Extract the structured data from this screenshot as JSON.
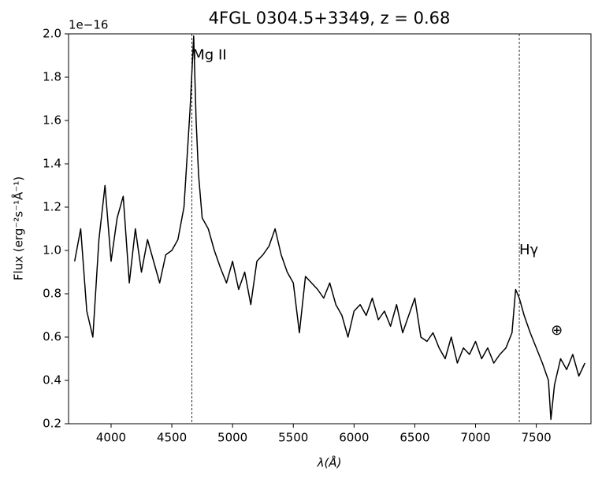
{
  "chart_data": {
    "type": "line",
    "title": "4FGL 0304.5+3349, z = 0.68",
    "x_label": "λ(Å)",
    "y_label": "Flux (erg⁻²s⁻¹Å⁻¹)",
    "y_offset_text": "1e−16",
    "color": "#000000",
    "x": [
      3700,
      3750,
      3800,
      3850,
      3900,
      3950,
      4000,
      4050,
      4100,
      4150,
      4200,
      4250,
      4300,
      4350,
      4400,
      4450,
      4500,
      4550,
      4600,
      4650,
      4680,
      4700,
      4720,
      4750,
      4800,
      4850,
      4900,
      4950,
      5000,
      5050,
      5100,
      5150,
      5200,
      5250,
      5300,
      5350,
      5400,
      5450,
      5500,
      5550,
      5600,
      5650,
      5700,
      5750,
      5800,
      5850,
      5900,
      5950,
      6000,
      6050,
      6100,
      6150,
      6200,
      6250,
      6300,
      6350,
      6400,
      6450,
      6500,
      6550,
      6600,
      6650,
      6700,
      6750,
      6800,
      6850,
      6900,
      6950,
      7000,
      7050,
      7100,
      7150,
      7200,
      7250,
      7300,
      7330,
      7360,
      7400,
      7450,
      7500,
      7550,
      7600,
      7620,
      7650,
      7700,
      7750,
      7800,
      7850,
      7900
    ],
    "values": [
      0.95,
      1.1,
      0.72,
      0.6,
      1.05,
      1.3,
      0.95,
      1.15,
      1.25,
      0.85,
      1.1,
      0.9,
      1.05,
      0.95,
      0.85,
      0.98,
      1.0,
      1.05,
      1.2,
      1.65,
      1.99,
      1.6,
      1.35,
      1.15,
      1.1,
      1.0,
      0.92,
      0.85,
      0.95,
      0.82,
      0.9,
      0.75,
      0.95,
      0.98,
      1.02,
      1.1,
      0.98,
      0.9,
      0.85,
      0.62,
      0.88,
      0.85,
      0.82,
      0.78,
      0.85,
      0.75,
      0.7,
      0.6,
      0.72,
      0.75,
      0.7,
      0.78,
      0.68,
      0.72,
      0.65,
      0.75,
      0.62,
      0.7,
      0.78,
      0.6,
      0.58,
      0.62,
      0.55,
      0.5,
      0.6,
      0.48,
      0.55,
      0.52,
      0.58,
      0.5,
      0.55,
      0.48,
      0.52,
      0.55,
      0.62,
      0.82,
      0.78,
      0.7,
      0.62,
      0.55,
      0.48,
      0.4,
      0.22,
      0.38,
      0.5,
      0.45,
      0.52,
      0.42,
      0.48
    ],
    "xlim": [
      3650,
      7950
    ],
    "ylim": [
      0.2,
      2.0
    ],
    "xticks": [
      4000,
      4500,
      5000,
      5500,
      6000,
      6500,
      7000,
      7500
    ],
    "yticks": [
      0.2,
      0.4,
      0.6,
      0.8,
      {
        "value": 1,
        "label": "1.0"
      },
      1.2,
      1.4,
      1.6,
      1.8,
      {
        "value": 2,
        "label": "2.0"
      }
    ],
    "vlines": [
      4665,
      7360
    ],
    "annotations": [
      {
        "text": "Mg II",
        "x": 4670,
        "y": 1.9
      },
      {
        "text": "Hγ",
        "x": 7360,
        "y": 1.0
      },
      {
        "text": "⊕",
        "x": 7620,
        "y": 0.63
      }
    ]
  }
}
